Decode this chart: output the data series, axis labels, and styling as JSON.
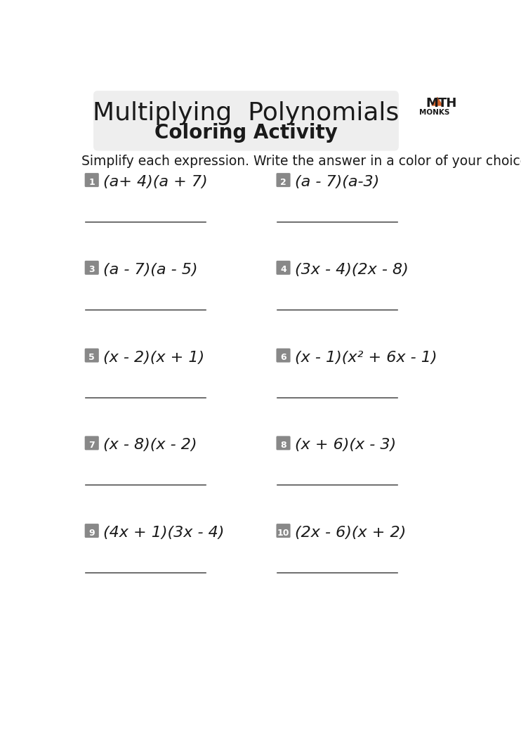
{
  "title_line1": "Multiplying  Polynomials",
  "title_line2": "Coloring Activity",
  "instruction": "Simplify each expression. Write the answer in a color of your choice.",
  "problems": [
    {
      "num": "1",
      "expr": "(a+ 4)(a + 7)",
      "col": 0
    },
    {
      "num": "2",
      "expr": "(a - 7)(a-3)",
      "col": 1
    },
    {
      "num": "3",
      "expr": "(a - 7)(a - 5)",
      "col": 0
    },
    {
      "num": "4",
      "expr": "(3x - 4)(2x - 8)",
      "col": 1
    },
    {
      "num": "5",
      "expr": "(x - 2)(x + 1)",
      "col": 0
    },
    {
      "num": "6",
      "expr": "(x - 1)(x² + 6x - 1)",
      "col": 1
    },
    {
      "num": "7",
      "expr": "(x - 8)(x - 2)",
      "col": 0
    },
    {
      "num": "8",
      "expr": "(x + 6)(x - 3)",
      "col": 1
    },
    {
      "num": "9",
      "expr": "(4x + 1)(3x - 4)",
      "col": 0
    },
    {
      "num": "10",
      "expr": "(2x - 6)(x + 2)",
      "col": 1
    }
  ],
  "bg_color": "#ffffff",
  "title_bg_color": "#eeeeee",
  "badge_color": "#888888",
  "badge_text_color": "#ffffff",
  "text_color": "#1a1a1a",
  "line_color": "#555555",
  "logo_triangle_color": "#d4622a",
  "logo_text_color": "#1a1a1a"
}
